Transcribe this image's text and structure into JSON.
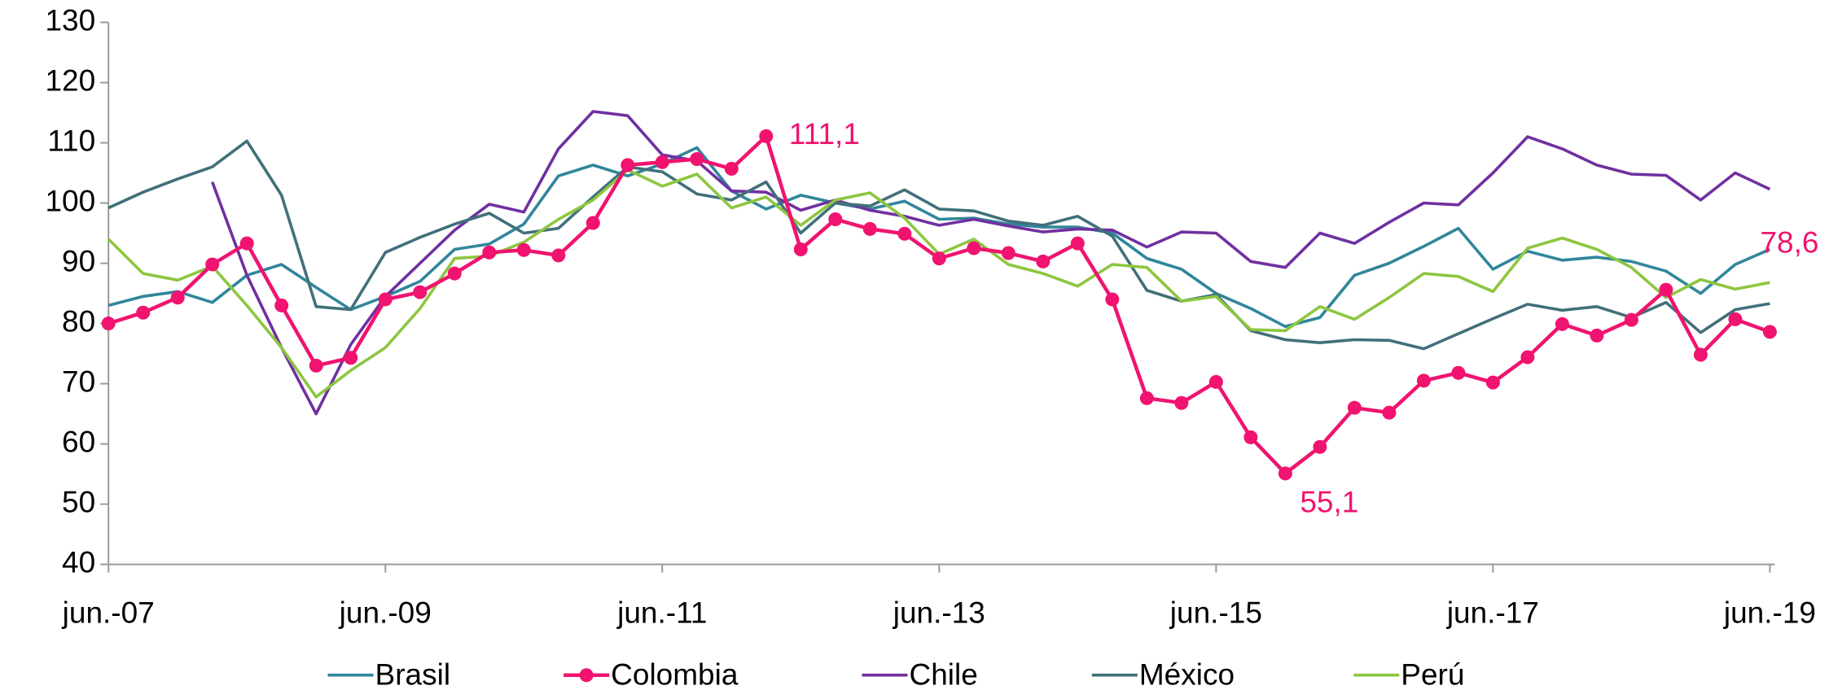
{
  "chart_data": {
    "type": "line",
    "categories": [
      "jun.-07",
      null,
      null,
      null,
      null,
      null,
      null,
      null,
      "jun.-09",
      null,
      null,
      null,
      null,
      null,
      null,
      null,
      "jun.-11",
      null,
      null,
      null,
      null,
      null,
      null,
      null,
      "jun.-13",
      null,
      null,
      null,
      null,
      null,
      null,
      null,
      "jun.-15",
      null,
      null,
      null,
      null,
      null,
      null,
      null,
      "jun.-17",
      null,
      null,
      null,
      null,
      null,
      null,
      null,
      "jun.-19"
    ],
    "ylim": [
      40,
      130
    ],
    "yticks": [
      40,
      50,
      60,
      70,
      80,
      90,
      100,
      110,
      120,
      130
    ],
    "legend": "bottom",
    "grid": false,
    "series": [
      {
        "name": "Brasil",
        "color": "#31869b",
        "values": [
          83,
          84.5,
          85.3,
          83.5,
          88,
          89.8,
          86,
          82.3,
          84.5,
          87,
          92.3,
          93.2,
          96.5,
          104.5,
          106.3,
          104.5,
          106.5,
          109.2,
          102,
          99,
          101.3,
          100,
          99,
          100.3,
          97.3,
          97.5,
          96.5,
          96,
          96,
          95,
          90.8,
          89,
          85,
          82.5,
          79.5,
          81,
          88,
          90,
          92.8,
          95.8,
          89,
          92,
          90.5,
          91,
          90.3,
          88.7,
          85,
          89.8,
          92.3
        ]
      },
      {
        "name": "Colombia",
        "color": "#f0136f",
        "markers": true,
        "values": [
          80,
          81.8,
          84.3,
          89.8,
          93.3,
          83,
          73,
          74.3,
          84,
          85.2,
          88.3,
          91.8,
          92.2,
          91.3,
          96.7,
          106.3,
          106.8,
          107.3,
          105.7,
          111.1,
          92.3,
          97.3,
          95.7,
          94.9,
          90.8,
          92.5,
          91.7,
          90.3,
          93.3,
          84,
          67.6,
          66.8,
          70.3,
          61.1,
          55.1,
          59.5,
          66,
          65.2,
          70.5,
          71.8,
          70.2,
          74.4,
          79.9,
          78,
          80.6,
          85.6,
          74.8,
          80.7,
          78.6
        ],
        "value_labels": [
          null,
          null,
          null,
          null,
          null,
          null,
          null,
          null,
          null,
          null,
          null,
          null,
          null,
          null,
          null,
          null,
          null,
          null,
          null,
          "111,1",
          null,
          null,
          null,
          null,
          null,
          null,
          null,
          null,
          null,
          null,
          null,
          null,
          null,
          null,
          "55,1",
          null,
          null,
          null,
          null,
          null,
          null,
          null,
          null,
          null,
          null,
          null,
          null,
          null,
          "78,6"
        ]
      },
      {
        "name": "Chile",
        "color": "#7030a0",
        "values": [
          null,
          null,
          null,
          103.5,
          88,
          76,
          65,
          76.5,
          84.5,
          90,
          95.5,
          99.8,
          98.5,
          109,
          115.2,
          114.5,
          108,
          107,
          102,
          101.8,
          98.8,
          100.5,
          98.8,
          97.8,
          96.3,
          97.3,
          96.2,
          95.2,
          95.7,
          95.5,
          92.7,
          95.2,
          95,
          90.3,
          89.3,
          95,
          93.3,
          96.8,
          100,
          99.7,
          105,
          111,
          109,
          106.3,
          104.8,
          104.6,
          100.5,
          105,
          102.3
        ]
      },
      {
        "name": "México",
        "color": "#41707a",
        "values": [
          99.2,
          101.8,
          104,
          106,
          110.3,
          101.3,
          82.8,
          82.3,
          91.8,
          94.3,
          96.5,
          98.3,
          95,
          95.8,
          101,
          106,
          105.2,
          101.5,
          100.5,
          103.5,
          95,
          100,
          99.5,
          102.2,
          99,
          98.7,
          97,
          96.3,
          97.8,
          94.5,
          85.5,
          83.7,
          84.8,
          78.8,
          77.3,
          76.8,
          77.3,
          77.2,
          75.8,
          78.3,
          80.8,
          83.2,
          82.2,
          82.8,
          81,
          83.5,
          78.5,
          82.3,
          83.3
        ]
      },
      {
        "name": "Perú",
        "color": "#8dc63f",
        "values": [
          94,
          88.3,
          87.2,
          89.5,
          83,
          76,
          67.8,
          72.2,
          76,
          82.5,
          90.8,
          91.2,
          93.5,
          97.3,
          100.5,
          105.5,
          102.8,
          104.8,
          99.2,
          101,
          96.3,
          100.5,
          101.7,
          97.5,
          91.5,
          94,
          89.8,
          88.3,
          86.2,
          89.8,
          89.3,
          83.7,
          84.5,
          79,
          78.8,
          82.8,
          80.7,
          84.3,
          88.3,
          87.8,
          85.3,
          92.5,
          94.2,
          92.3,
          89.3,
          84.3,
          87.3,
          85.7,
          86.8
        ]
      }
    ]
  }
}
